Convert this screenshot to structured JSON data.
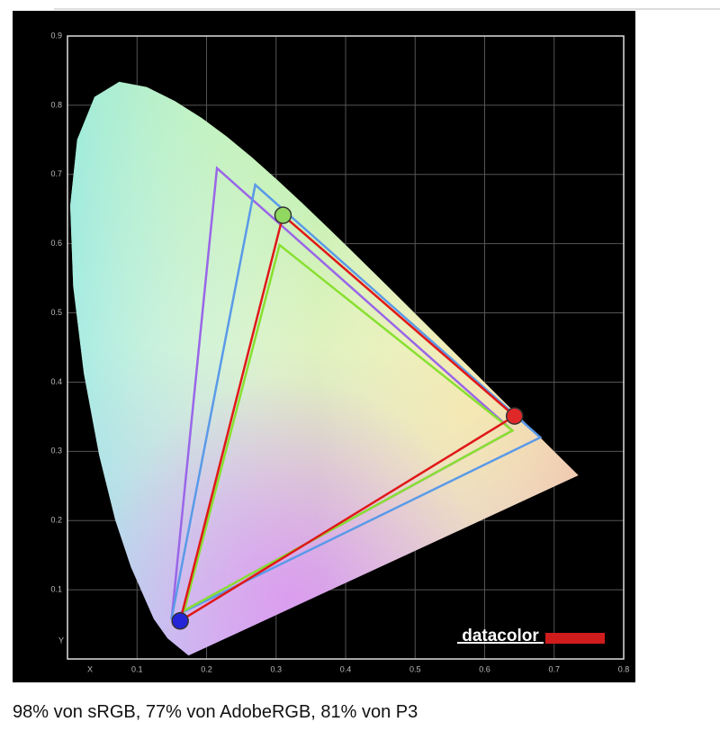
{
  "chart_data": {
    "type": "gamut",
    "xlabel": "X",
    "ylabel": "Y",
    "xlim": [
      0,
      0.8
    ],
    "ylim": [
      0,
      0.9
    ],
    "xticks": [
      0.1,
      0.2,
      0.3,
      0.4,
      0.5,
      0.6,
      0.7,
      0.8
    ],
    "yticks": [
      0.1,
      0.2,
      0.3,
      0.4,
      0.5,
      0.6,
      0.7,
      0.8,
      0.9
    ],
    "grid": true,
    "locus": {
      "x": [
        0.1741,
        0.144,
        0.1241,
        0.0913,
        0.0687,
        0.0454,
        0.0235,
        0.0082,
        0.0039,
        0.0139,
        0.0389,
        0.0743,
        0.1142,
        0.1547,
        0.1929,
        0.2296,
        0.2658,
        0.3016,
        0.3373,
        0.3731,
        0.4087,
        0.4441,
        0.4788,
        0.5125,
        0.5448,
        0.5752,
        0.6029,
        0.627,
        0.6482,
        0.6658,
        0.6915,
        0.7347
      ],
      "y": [
        0.005,
        0.0297,
        0.0578,
        0.1327,
        0.2007,
        0.295,
        0.4127,
        0.5384,
        0.6548,
        0.7502,
        0.812,
        0.8338,
        0.8262,
        0.8059,
        0.7816,
        0.7543,
        0.7243,
        0.6923,
        0.6589,
        0.6245,
        0.5896,
        0.5547,
        0.5202,
        0.4866,
        0.4544,
        0.4242,
        0.3965,
        0.3725,
        0.3514,
        0.334,
        0.3083,
        0.2653
      ]
    },
    "series": [
      {
        "color": "#9a66e8",
        "x": [
          0.64,
          0.215,
          0.15
        ],
        "y": [
          0.33,
          0.709,
          0.06
        ]
      },
      {
        "color": "#5a9ae8",
        "x": [
          0.68,
          0.27,
          0.15
        ],
        "y": [
          0.32,
          0.685,
          0.06
        ]
      },
      {
        "color": "#88e030",
        "x": [
          0.64,
          0.305,
          0.168
        ],
        "y": [
          0.33,
          0.598,
          0.07
        ]
      },
      {
        "color": "#e01818",
        "x": [
          0.643,
          0.31,
          0.162
        ],
        "y": [
          0.351,
          0.641,
          0.055
        ],
        "marker_colors": [
          "#e02828",
          "#90d860",
          "#2424d8"
        ]
      }
    ],
    "logo": "datacolor"
  },
  "caption": "98% von sRGB, 77% von AdobeRGB, 81% von P3"
}
